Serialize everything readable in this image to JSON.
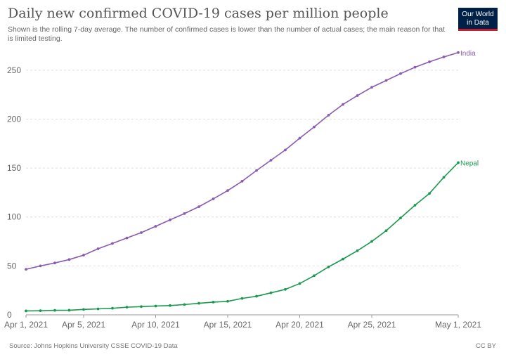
{
  "header": {
    "title": "Daily new confirmed COVID-19 cases per million people",
    "subtitle": "Shown is the rolling 7-day average. The number of confirmed cases is lower than the number of actual cases; the main reason for that is limited testing."
  },
  "logo": {
    "line1": "Our World",
    "line2": "in Data",
    "bg_color": "#002147",
    "accent_color": "#be2032"
  },
  "footer": {
    "source": "Source: Johns Hopkins University CSSE COVID-19 Data",
    "license": "CC BY"
  },
  "chart_data": {
    "type": "line",
    "title": "Daily new confirmed COVID-19 cases per million people",
    "xlabel": "",
    "ylabel": "",
    "ylim": [
      0,
      270
    ],
    "y_ticks": [
      0,
      50,
      100,
      150,
      200,
      250
    ],
    "x_ticks": [
      {
        "day": 0,
        "label": "Apr 1, 2021"
      },
      {
        "day": 4,
        "label": "Apr 5, 2021"
      },
      {
        "day": 9,
        "label": "Apr 10, 2021"
      },
      {
        "day": 14,
        "label": "Apr 15, 2021"
      },
      {
        "day": 19,
        "label": "Apr 20, 2021"
      },
      {
        "day": 24,
        "label": "Apr 25, 2021"
      },
      {
        "day": 30,
        "label": "May 1, 2021"
      }
    ],
    "x": [
      "2021-04-01",
      "2021-04-02",
      "2021-04-03",
      "2021-04-04",
      "2021-04-05",
      "2021-04-06",
      "2021-04-07",
      "2021-04-08",
      "2021-04-09",
      "2021-04-10",
      "2021-04-11",
      "2021-04-12",
      "2021-04-13",
      "2021-04-14",
      "2021-04-15",
      "2021-04-16",
      "2021-04-17",
      "2021-04-18",
      "2021-04-19",
      "2021-04-20",
      "2021-04-21",
      "2021-04-22",
      "2021-04-23",
      "2021-04-24",
      "2021-04-25",
      "2021-04-26",
      "2021-04-27",
      "2021-04-28",
      "2021-04-29",
      "2021-04-30",
      "2021-05-01"
    ],
    "grid": "horizontal dashed",
    "series": [
      {
        "name": "India",
        "color": "#8a5bb0",
        "values": [
          46.5,
          50,
          53,
          56.5,
          61,
          67.5,
          73,
          78.5,
          84,
          90.5,
          97,
          103.5,
          110.5,
          118.5,
          127,
          136.5,
          147.5,
          158,
          168.5,
          180.5,
          192,
          204,
          215,
          224,
          232.5,
          239.5,
          246.5,
          253,
          258.5,
          263.5,
          268
        ]
      },
      {
        "name": "Nepal",
        "color": "#1c9950",
        "values": [
          4,
          4.2,
          4.6,
          4.7,
          5.5,
          6.1,
          6.7,
          7.8,
          8.4,
          9,
          9.5,
          10.5,
          11.8,
          13,
          13.8,
          16.8,
          19,
          22.5,
          26,
          32,
          40,
          49,
          57,
          65.5,
          75,
          86,
          99,
          112,
          124,
          140.5,
          155.5
        ]
      }
    ]
  }
}
